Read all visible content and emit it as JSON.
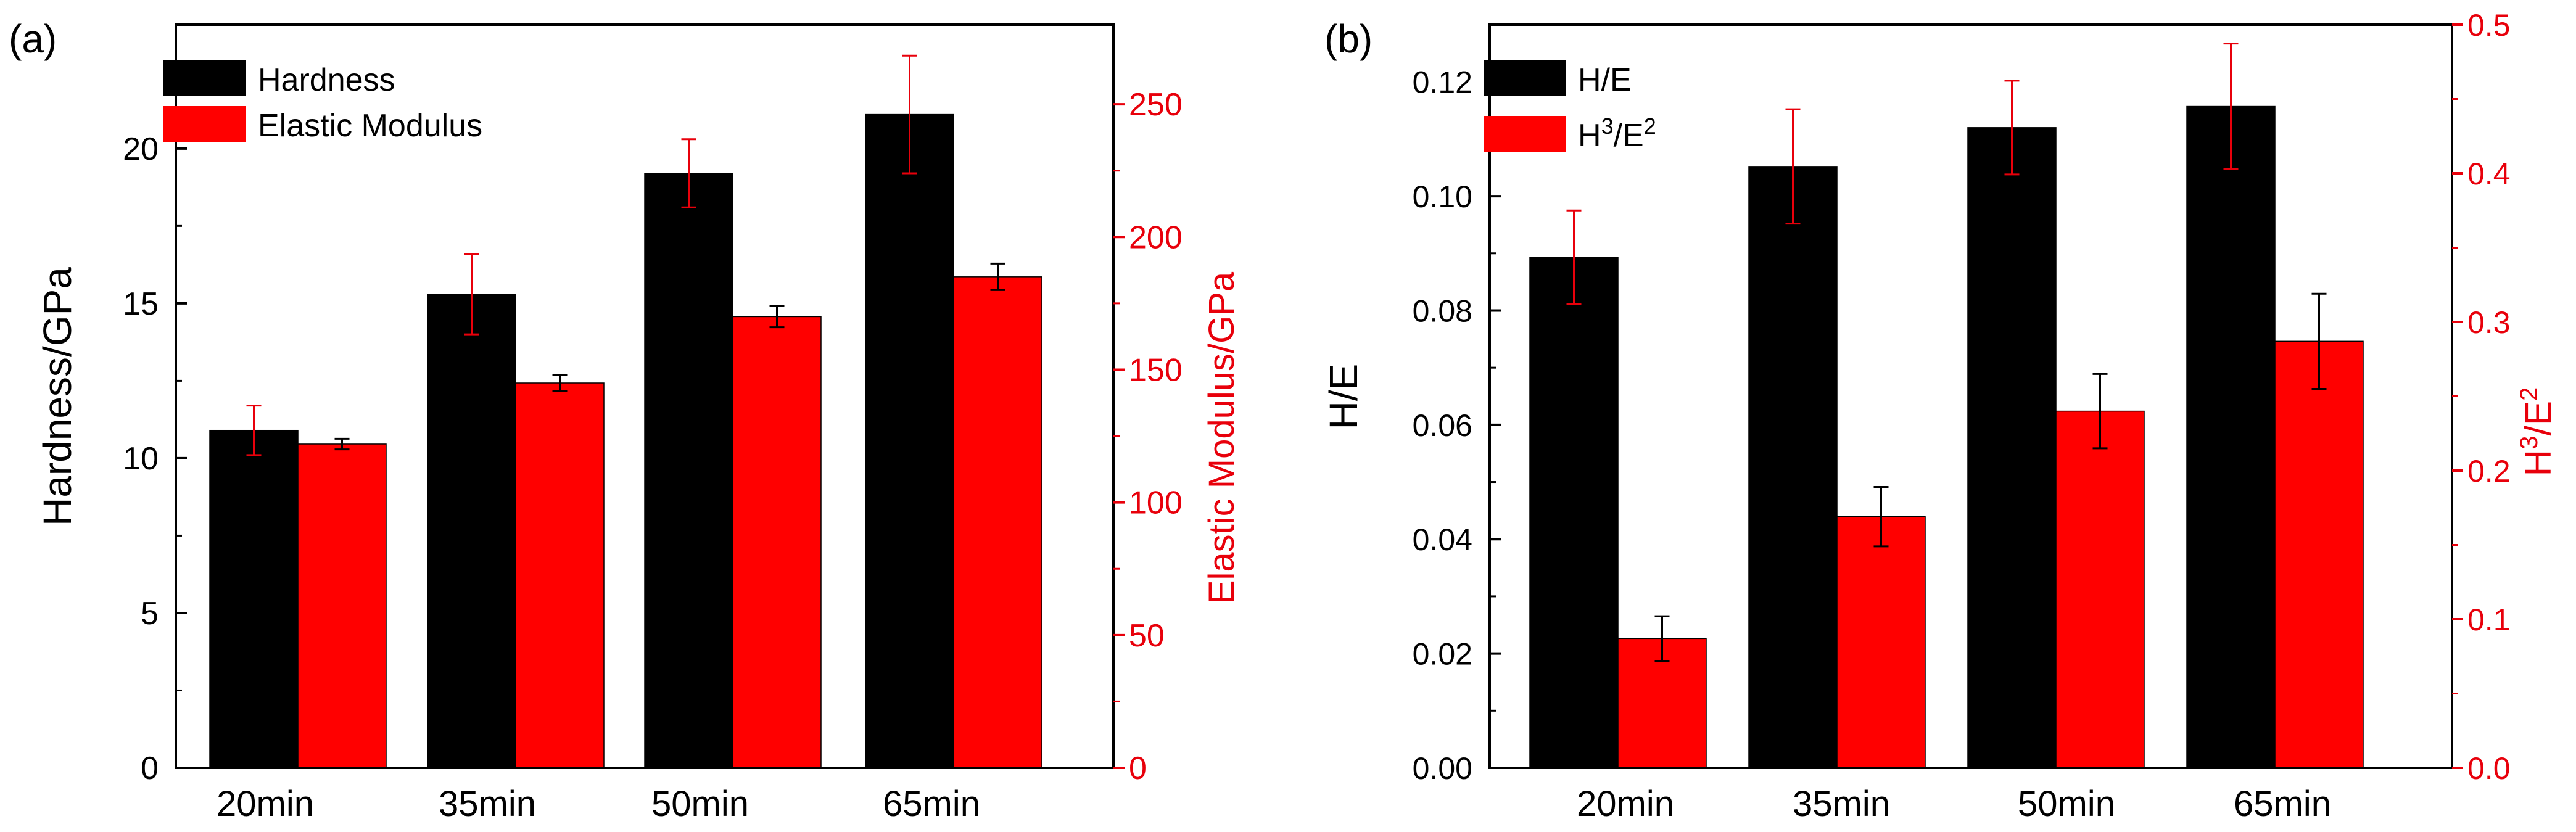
{
  "chart_data": [
    {
      "panel_label": "(a)",
      "type": "bar",
      "categories": [
        "20min",
        "35min",
        "50min",
        "65min"
      ],
      "left_axis": {
        "label": "Hardness/GPa",
        "ylim": [
          0,
          24
        ],
        "ticks": [
          0,
          5,
          10,
          15,
          20
        ],
        "tick_labels": [
          "0",
          "5",
          "10",
          "15",
          "20"
        ],
        "color": "#000000"
      },
      "right_axis": {
        "label": "Elastic Modulus/GPa",
        "ylim": [
          0,
          280
        ],
        "ticks": [
          0,
          50,
          100,
          150,
          200,
          250
        ],
        "tick_labels": [
          "0",
          "50",
          "100",
          "150",
          "200",
          "250"
        ],
        "color": "#e8000b"
      },
      "series": [
        {
          "name": "Hardness",
          "axis": "left",
          "color": "#000000",
          "values": [
            10.9,
            15.3,
            19.2,
            21.1
          ],
          "errors": [
            0.8,
            1.3,
            1.1,
            1.9
          ],
          "error_color": "#e8000b"
        },
        {
          "name": "Elastic Modulus",
          "axis": "right",
          "color": "#ff0000",
          "values": [
            122,
            145,
            170,
            185
          ],
          "errors": [
            2,
            3,
            4,
            5
          ],
          "error_color": "#000000"
        }
      ],
      "legend": {
        "position": "top-left",
        "entries": [
          "Hardness",
          "Elastic Modulus"
        ]
      }
    },
    {
      "panel_label": "(b)",
      "type": "bar",
      "categories": [
        "20min",
        "35min",
        "50min",
        "65min"
      ],
      "left_axis": {
        "label": "H/E",
        "ylim": [
          0,
          0.13
        ],
        "ticks": [
          0,
          0.02,
          0.04,
          0.06,
          0.08,
          0.1,
          0.12
        ],
        "tick_labels": [
          "0.00",
          "0.02",
          "0.04",
          "0.06",
          "0.08",
          "0.10",
          "0.12"
        ],
        "color": "#000000"
      },
      "right_axis": {
        "label_base_1": "H",
        "label_sup_1": "3",
        "label_base_2": "/E",
        "label_sup_2": "2",
        "ylim": [
          0,
          0.5
        ],
        "ticks": [
          0,
          0.1,
          0.2,
          0.3,
          0.4,
          0.5
        ],
        "tick_labels": [
          "0.0",
          "0.1",
          "0.2",
          "0.3",
          "0.4",
          "0.5"
        ],
        "color": "#e8000b"
      },
      "series": [
        {
          "name": "H/E",
          "axis": "left",
          "color": "#000000",
          "values": [
            0.0893,
            0.1052,
            0.112,
            0.1157
          ],
          "errors": [
            0.0082,
            0.01,
            0.0082,
            0.011
          ],
          "error_color": "#e8000b"
        },
        {
          "name_base_1": "H",
          "name_sup_1": "3",
          "name_base_2": "/E",
          "name_sup_2": "2",
          "axis": "right",
          "color": "#ff0000",
          "values": [
            0.087,
            0.169,
            0.24,
            0.287
          ],
          "errors": [
            0.015,
            0.02,
            0.025,
            0.032
          ],
          "error_color": "#000000"
        }
      ],
      "legend": {
        "position": "top-left"
      }
    }
  ]
}
